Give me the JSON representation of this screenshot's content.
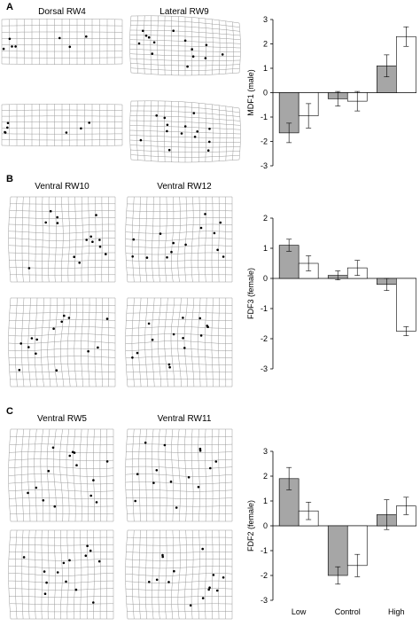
{
  "panels": [
    {
      "letter": "A",
      "grid_titles": [
        "Dorsal RW4",
        "Lateral RW9"
      ],
      "grid_style": [
        "flat",
        "lateral"
      ],
      "chart_data": {
        "type": "bar",
        "categories": [
          "Low",
          "Control",
          "High"
        ],
        "show_category_labels": false,
        "ylabel": "MDF1 (male)",
        "ylim": [
          -3,
          3
        ],
        "yticks": [
          -3,
          -2,
          -1,
          0,
          1,
          2,
          3
        ],
        "series": [
          {
            "color": "#a6a6a6",
            "values": [
              -1.65,
              -0.25,
              1.1
            ],
            "errors": [
              0.4,
              0.3,
              0.45
            ]
          },
          {
            "color": "#ffffff",
            "values": [
              -0.95,
              -0.35,
              2.3
            ],
            "errors": [
              0.5,
              0.4,
              0.4
            ]
          }
        ]
      }
    },
    {
      "letter": "B",
      "grid_titles": [
        "Ventral RW10",
        "Ventral RW12"
      ],
      "grid_style": [
        "square",
        "square"
      ],
      "chart_data": {
        "type": "bar",
        "categories": [
          "Low",
          "Control",
          "High"
        ],
        "show_category_labels": false,
        "ylabel": "FDF3 (female)",
        "ylim": [
          -3,
          2
        ],
        "yticks": [
          -3,
          -2,
          -1,
          0,
          1,
          2
        ],
        "series": [
          {
            "color": "#a6a6a6",
            "values": [
              1.1,
              0.1,
              -0.2
            ],
            "errors": [
              0.2,
              0.15,
              0.2
            ]
          },
          {
            "color": "#ffffff",
            "values": [
              0.5,
              0.35,
              -1.75
            ],
            "errors": [
              0.25,
              0.25,
              0.15
            ]
          }
        ]
      }
    },
    {
      "letter": "C",
      "grid_titles": [
        "Ventral RW5",
        "Ventral RW11"
      ],
      "grid_style": [
        "square",
        "square"
      ],
      "chart_data": {
        "type": "bar",
        "categories": [
          "Low",
          "Control",
          "High"
        ],
        "show_category_labels": true,
        "ylabel": "FDF2 (female)",
        "ylim": [
          -3,
          3
        ],
        "yticks": [
          -3,
          -2,
          -1,
          0,
          1,
          2,
          3
        ],
        "series": [
          {
            "color": "#a6a6a6",
            "values": [
              1.9,
              -2.0,
              0.45
            ],
            "errors": [
              0.45,
              0.35,
              0.6
            ]
          },
          {
            "color": "#ffffff",
            "values": [
              0.6,
              -1.6,
              0.8
            ],
            "errors": [
              0.35,
              0.45,
              0.35
            ]
          }
        ]
      }
    }
  ]
}
